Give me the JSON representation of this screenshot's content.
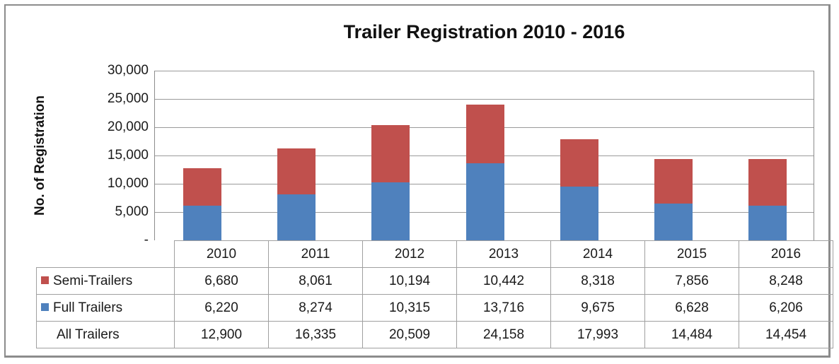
{
  "chart_data": {
    "type": "bar",
    "stacked": true,
    "title": "Trailer Registration 2010 - 2016",
    "xlabel": "",
    "ylabel": "No. of Registration",
    "ylim": [
      0,
      30000
    ],
    "yticks": [
      "-",
      "5,000",
      "10,000",
      "15,000",
      "20,000",
      "25,000",
      "30,000"
    ],
    "grid": true,
    "legend_position": "data-table",
    "categories": [
      "2010",
      "2011",
      "2012",
      "2013",
      "2014",
      "2015",
      "2016"
    ],
    "series": [
      {
        "name": "Semi-Trailers",
        "color": "#c0504d",
        "values": [
          6680,
          8061,
          10194,
          10442,
          8318,
          7856,
          8248
        ]
      },
      {
        "name": "Full Trailers",
        "color": "#4f81bd",
        "values": [
          6220,
          8274,
          10315,
          13716,
          9675,
          6628,
          6206
        ]
      }
    ],
    "totals": {
      "name": "All Trailers",
      "values": [
        12900,
        16335,
        20509,
        24158,
        17993,
        14484,
        14454
      ]
    }
  },
  "table": {
    "header": [
      "2010",
      "2011",
      "2012",
      "2013",
      "2014",
      "2015",
      "2016"
    ],
    "rows": [
      {
        "label": "Semi-Trailers",
        "cells": [
          "6,680",
          "8,061",
          "10,194",
          "10,442",
          "8,318",
          "7,856",
          "8,248"
        ]
      },
      {
        "label": "Full Trailers",
        "cells": [
          "6,220",
          "8,274",
          "10,315",
          "13,716",
          "9,675",
          "6,628",
          "6,206"
        ]
      },
      {
        "label": "All Trailers",
        "cells": [
          "12,900",
          "16,335",
          "20,509",
          "24,158",
          "17,993",
          "14,484",
          "14,454"
        ]
      }
    ]
  }
}
